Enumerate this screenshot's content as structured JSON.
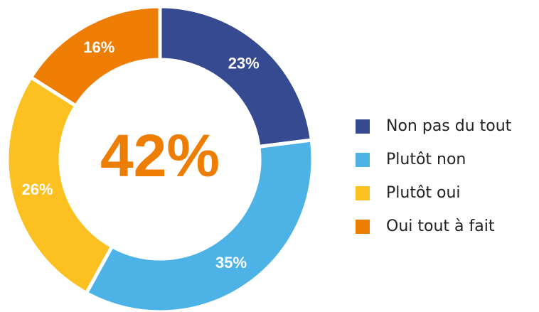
{
  "chart_data": {
    "type": "donut",
    "categories": [
      "Non pas du tout",
      "Plutôt non",
      "Plutôt oui",
      "Oui tout à fait"
    ],
    "values": [
      23,
      35,
      26,
      16
    ],
    "value_labels": [
      "23%",
      "35%",
      "26%",
      "16%"
    ],
    "colors": [
      "#364a92",
      "#4db3e7",
      "#fcc020",
      "#ee7d03"
    ],
    "center_label": "42%",
    "center_label_color": "#ee7d03",
    "legend": "right"
  }
}
